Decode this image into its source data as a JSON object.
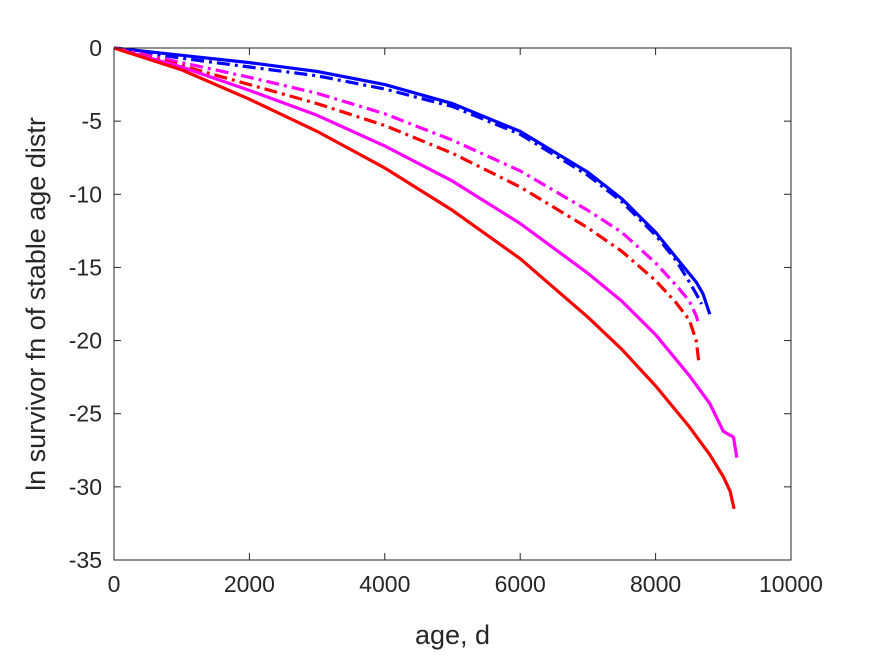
{
  "chart_data": {
    "type": "line",
    "xlabel": "age, d",
    "ylabel": "ln survivor fn of stable age distr",
    "xlim": [
      0,
      10000
    ],
    "ylim": [
      -35,
      0
    ],
    "xticks": [
      0,
      2000,
      4000,
      6000,
      8000,
      10000
    ],
    "yticks": [
      0,
      -5,
      -10,
      -15,
      -20,
      -25,
      -30,
      -35
    ],
    "xtick_labels": [
      "0",
      "2000",
      "4000",
      "6000",
      "8000",
      "10000"
    ],
    "ytick_labels": [
      "0",
      "-5",
      "-10",
      "-15",
      "-20",
      "-25",
      "-30",
      "-35"
    ],
    "grid": false,
    "series": [
      {
        "color": "#0000ff",
        "style": "solid",
        "points": [
          [
            0,
            0
          ],
          [
            1000,
            -0.5
          ],
          [
            2000,
            -1.0
          ],
          [
            3000,
            -1.6
          ],
          [
            4000,
            -2.5
          ],
          [
            5000,
            -3.8
          ],
          [
            6000,
            -5.7
          ],
          [
            7000,
            -8.5
          ],
          [
            7500,
            -10.3
          ],
          [
            8000,
            -12.6
          ],
          [
            8300,
            -14.3
          ],
          [
            8600,
            -16.0
          ],
          [
            8700,
            -16.8
          ],
          [
            8800,
            -18.2
          ]
        ]
      },
      {
        "color": "#0000ff",
        "style": "dashdot",
        "points": [
          [
            0,
            0
          ],
          [
            1000,
            -0.7
          ],
          [
            2000,
            -1.3
          ],
          [
            3000,
            -1.9
          ],
          [
            4000,
            -2.8
          ],
          [
            5000,
            -4.0
          ],
          [
            6000,
            -5.9
          ],
          [
            7000,
            -8.7
          ],
          [
            7500,
            -10.5
          ],
          [
            8000,
            -12.8
          ],
          [
            8300,
            -14.5
          ],
          [
            8500,
            -16.0
          ],
          [
            8600,
            -16.8
          ],
          [
            8680,
            -17.5
          ]
        ]
      },
      {
        "color": "#ff00ff",
        "style": "dashdot",
        "points": [
          [
            0,
            0
          ],
          [
            1000,
            -1.0
          ],
          [
            2000,
            -2.0
          ],
          [
            3000,
            -3.1
          ],
          [
            4000,
            -4.5
          ],
          [
            5000,
            -6.3
          ],
          [
            6000,
            -8.4
          ],
          [
            7000,
            -11.1
          ],
          [
            7500,
            -12.6
          ],
          [
            8000,
            -14.7
          ],
          [
            8300,
            -16.2
          ],
          [
            8500,
            -17.3
          ],
          [
            8600,
            -18.3
          ],
          [
            8640,
            -18.9
          ]
        ]
      },
      {
        "color": "#ff0000",
        "style": "dashdot",
        "points": [
          [
            0,
            0
          ],
          [
            1000,
            -1.2
          ],
          [
            2000,
            -2.5
          ],
          [
            3000,
            -3.8
          ],
          [
            4000,
            -5.3
          ],
          [
            5000,
            -7.2
          ],
          [
            6000,
            -9.5
          ],
          [
            7000,
            -12.3
          ],
          [
            7500,
            -13.9
          ],
          [
            8000,
            -15.9
          ],
          [
            8300,
            -17.4
          ],
          [
            8500,
            -18.6
          ],
          [
            8600,
            -20.0
          ],
          [
            8640,
            -21.5
          ]
        ]
      },
      {
        "color": "#ff00ff",
        "style": "solid",
        "points": [
          [
            0,
            0
          ],
          [
            1000,
            -1.3
          ],
          [
            2000,
            -2.9
          ],
          [
            3000,
            -4.6
          ],
          [
            4000,
            -6.7
          ],
          [
            5000,
            -9.1
          ],
          [
            6000,
            -12.0
          ],
          [
            7000,
            -15.4
          ],
          [
            7500,
            -17.3
          ],
          [
            8000,
            -19.6
          ],
          [
            8500,
            -22.4
          ],
          [
            8800,
            -24.3
          ],
          [
            9000,
            -26.2
          ],
          [
            9150,
            -26.6
          ],
          [
            9200,
            -28.0
          ]
        ]
      },
      {
        "color": "#ff0000",
        "style": "solid",
        "points": [
          [
            0,
            0
          ],
          [
            1000,
            -1.5
          ],
          [
            2000,
            -3.5
          ],
          [
            3000,
            -5.7
          ],
          [
            4000,
            -8.2
          ],
          [
            5000,
            -11.1
          ],
          [
            6000,
            -14.4
          ],
          [
            7000,
            -18.4
          ],
          [
            7500,
            -20.6
          ],
          [
            8000,
            -23.1
          ],
          [
            8500,
            -25.9
          ],
          [
            8800,
            -27.8
          ],
          [
            9000,
            -29.3
          ],
          [
            9100,
            -30.3
          ],
          [
            9160,
            -31.5
          ]
        ]
      }
    ]
  }
}
